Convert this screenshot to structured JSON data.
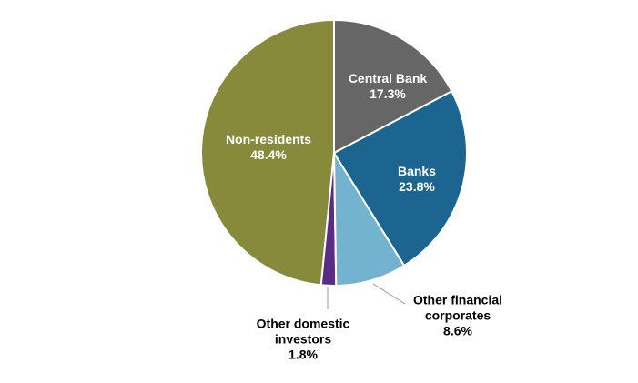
{
  "chart_data": {
    "type": "pie",
    "categories": [
      "Central Bank",
      "Banks",
      "Other financial corporates",
      "Other domestic investors",
      "Non-residents"
    ],
    "values": [
      17.3,
      23.8,
      8.6,
      1.8,
      48.4
    ],
    "value_labels": [
      "17.3%",
      "23.8%",
      "8.6%",
      "1.8%",
      "48.4%"
    ],
    "colors": [
      "#666666",
      "#1c6591",
      "#74b3cf",
      "#5b2d82",
      "#868a3a"
    ]
  }
}
